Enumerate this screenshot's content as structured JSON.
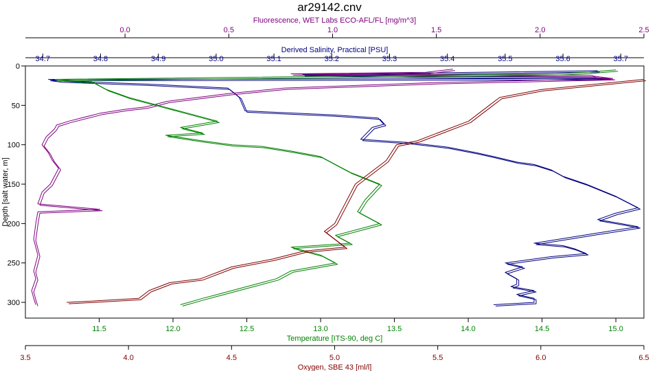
{
  "chart_data": {
    "type": "line",
    "title": "ar29142.cnv",
    "grid": false,
    "legend": "none",
    "y_axis": {
      "label": "Depth [salt water, m]",
      "range": [
        0,
        320
      ],
      "ticks": [
        0,
        50,
        100,
        150,
        200,
        250,
        300
      ],
      "tick_labels": [
        "0",
        "50",
        "100",
        "150",
        "200",
        "250",
        "300"
      ],
      "color": "#000000"
    },
    "x_axes": [
      {
        "id": "fluorescence",
        "label": "Fluorescence, WET Labs ECO-AFL/FL [mg/m^3]",
        "position": "top-outer",
        "range": [
          -0.48,
          2.5
        ],
        "ticks": [
          0.0,
          0.5,
          1.0,
          1.5,
          2.0,
          2.5
        ],
        "tick_labels": [
          "0.0",
          "0.5",
          "1.0",
          "1.5",
          "2.0",
          "2.5"
        ],
        "color": "#800080"
      },
      {
        "id": "salinity",
        "label": "Derived Salinity, Practical [PSU]",
        "position": "top-inner",
        "range": [
          34.67,
          35.74
        ],
        "ticks": [
          34.7,
          34.8,
          34.9,
          35.0,
          35.1,
          35.2,
          35.3,
          35.4,
          35.5,
          35.6,
          35.7
        ],
        "tick_labels": [
          "34.7",
          "34.8",
          "34.9",
          "35.0",
          "35.1",
          "35.2",
          "35.3",
          "35.4",
          "35.5",
          "35.6",
          "35.7"
        ],
        "color": "#000080"
      },
      {
        "id": "temperature",
        "label": "Temperature [ITS-90, deg C]",
        "position": "bottom-inner",
        "range": [
          11.0,
          15.19
        ],
        "ticks": [
          11.5,
          12.0,
          12.5,
          13.0,
          13.5,
          14.0,
          14.5,
          15.0
        ],
        "tick_labels": [
          "11.5",
          "12.0",
          "12.5",
          "13.0",
          "13.5",
          "14.0",
          "14.5",
          "15.0"
        ],
        "color": "#008000"
      },
      {
        "id": "oxygen",
        "label": "Oxygen, SBE 43 [ml/l]",
        "position": "bottom-outer",
        "range": [
          3.5,
          6.5
        ],
        "ticks": [
          3.5,
          4.0,
          4.5,
          5.0,
          5.5,
          6.0,
          6.5
        ],
        "tick_labels": [
          "3.5",
          "4.0",
          "4.5",
          "5.0",
          "5.5",
          "6.0",
          "6.5"
        ],
        "color": "#800000"
      }
    ],
    "series": [
      {
        "axis": "salinity",
        "color": "#000080",
        "x": [
          35.66,
          35.15,
          35.36,
          35.55,
          35.66,
          35.68,
          34.71,
          34.73,
          34.88,
          35.02,
          35.04,
          35.05,
          35.2,
          35.28,
          35.29,
          35.27,
          35.25,
          35.33,
          35.4,
          35.45,
          35.48,
          35.52,
          35.55,
          35.58,
          35.6,
          35.64,
          35.69,
          35.73,
          35.69,
          35.66,
          35.7,
          35.73,
          35.66,
          35.55,
          35.6,
          35.62,
          35.64,
          35.58,
          35.5,
          35.53,
          35.5,
          35.52,
          35.52,
          35.51,
          35.55,
          35.52,
          35.55,
          35.55,
          35.48
        ],
        "y": [
          6,
          11,
          13,
          14,
          15,
          16,
          17,
          19,
          23,
          28,
          40,
          57,
          62,
          66,
          74,
          78,
          93,
          97,
          103,
          110,
          115,
          122,
          125,
          132,
          140,
          150,
          165,
          180,
          187,
          195,
          200,
          204,
          212,
          225,
          228,
          232,
          238,
          242,
          250,
          255,
          262,
          270,
          277,
          280,
          285,
          290,
          295,
          300,
          303
        ]
      },
      {
        "axis": "fluorescence",
        "color": "#800080",
        "x": [
          1.58,
          1.45,
          0.8,
          1.64,
          2.25,
          2.26,
          2.35,
          1.5,
          0.77,
          0.5,
          0.2,
          0.1,
          0.0,
          -0.12,
          -0.27,
          -0.33,
          -0.34,
          -0.38,
          -0.4,
          -0.37,
          -0.35,
          -0.32,
          -0.34,
          -0.36,
          -0.4,
          -0.42,
          -0.12,
          -0.42,
          -0.43,
          -0.44,
          -0.42,
          -0.44,
          -0.43,
          -0.45,
          -0.44,
          -0.43
        ],
        "y": [
          4,
          8,
          10,
          11,
          12,
          13,
          16,
          21,
          28,
          35,
          45,
          52,
          55,
          60,
          70,
          75,
          80,
          90,
          100,
          110,
          120,
          130,
          140,
          150,
          160,
          175,
          182,
          185,
          200,
          220,
          240,
          260,
          270,
          285,
          295,
          303
        ]
      },
      {
        "axis": "temperature",
        "color": "#008000",
        "x": [
          15.0,
          14.8,
          14.6,
          11.2,
          11.45,
          11.55,
          11.7,
          11.9,
          12.1,
          12.3,
          12.05,
          12.2,
          11.95,
          12.2,
          12.4,
          12.6,
          12.8,
          13.0,
          13.1,
          13.2,
          13.4,
          13.3,
          13.25,
          13.4,
          13.3,
          13.1,
          13.2,
          12.8,
          13.0,
          13.1,
          12.8,
          12.7,
          12.6,
          12.5,
          12.3,
          12.2,
          12.05
        ],
        "y": [
          5,
          8,
          10,
          17,
          20,
          30,
          40,
          50,
          60,
          70,
          78,
          85,
          88,
          95,
          100,
          102,
          108,
          115,
          125,
          135,
          150,
          170,
          185,
          200,
          205,
          215,
          225,
          230,
          240,
          250,
          260,
          270,
          275,
          280,
          290,
          295,
          303
        ]
      },
      {
        "axis": "oxygen",
        "color": "#800000",
        "x": [
          3.7,
          3.85,
          4.05,
          4.1,
          4.15,
          4.2,
          4.35,
          4.5,
          4.7,
          4.85,
          5.05,
          5.0,
          4.95,
          5.0,
          5.05,
          5.1,
          5.25,
          5.3,
          5.4,
          5.5,
          5.65,
          5.7,
          5.75,
          5.8,
          6.0,
          6.5
        ],
        "y": [
          300,
          298,
          295,
          285,
          280,
          275,
          270,
          255,
          245,
          235,
          230,
          220,
          210,
          200,
          175,
          150,
          120,
          100,
          95,
          85,
          70,
          60,
          50,
          40,
          30,
          17
        ]
      }
    ]
  }
}
